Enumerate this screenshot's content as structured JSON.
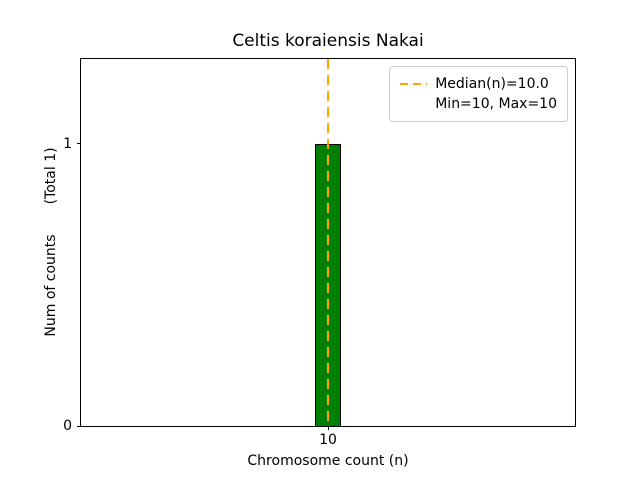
{
  "chart_data": {
    "type": "bar",
    "title": "Celtis koraiensis Nakai",
    "xlabel": "Chromosome count (n)",
    "ylabel": "Num of counts",
    "ylabel_annotation": "(Total 1)",
    "total_counts": 1,
    "categories": [
      "10"
    ],
    "values": [
      1
    ],
    "ylim": [
      0,
      1.3
    ],
    "yticks": [
      "0",
      "1"
    ],
    "grid": false,
    "bar_color": "#008000",
    "bar_edge_color": "#000000",
    "median": 10.0,
    "min": 10,
    "max": 10,
    "median_line_color": "#FFA500",
    "median_line_style": "dashed",
    "legend": {
      "position": "upper right",
      "entries": [
        {
          "label": "Median(n)=10.0",
          "marker": "dashed-line"
        },
        {
          "label": "Min=10, Max=10",
          "marker": "none"
        }
      ]
    }
  }
}
